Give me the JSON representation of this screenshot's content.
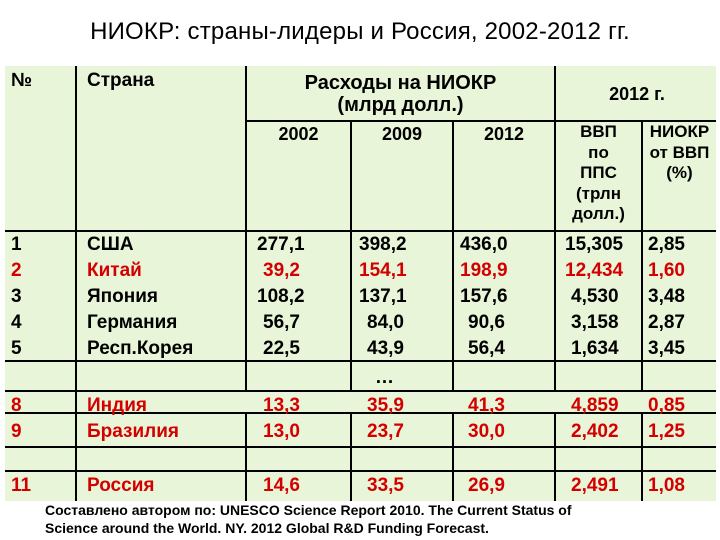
{
  "title": "НИОКР: страны-лидеры и Россия, 2002-2012 гг.",
  "headers": {
    "num": "№",
    "country": "Страна",
    "rd_group_line1": "Расходы на НИОКР",
    "rd_group_line2": "(млрд долл.)",
    "y2002": "2002",
    "y2009": "2009",
    "y2012": "2012",
    "group_2012": "2012 г.",
    "gdp_lines": [
      "ВВП",
      "по",
      "ППС",
      "(трлн",
      "долл.)"
    ],
    "rd_gdp_lines": [
      "НИОКР",
      "от ВВП",
      "(%)"
    ]
  },
  "rows": [
    {
      "num": "1",
      "country": "США",
      "v2002": "277,1",
      "v2009": "398,2",
      "v2012": "436,0",
      "gdp": "15,305",
      "share": "2,85",
      "color": "#000000"
    },
    {
      "num": "2",
      "country": "Китай",
      "v2002": "39,2",
      "v2009": "154,1",
      "v2012": "198,9",
      "gdp": "12,434",
      "share": "1,60",
      "color": "#d40000"
    },
    {
      "num": "3",
      "country": "Япония",
      "v2002": "108,2",
      "v2009": "137,1",
      "v2012": "157,6",
      "gdp": "4,530",
      "share": "3,48",
      "color": "#000000"
    },
    {
      "num": "4",
      "country": "Германия",
      "v2002": "56,7",
      "v2009": "84,0",
      "v2012": "90,6",
      "gdp": "3,158",
      "share": "2,87",
      "color": "#000000"
    },
    {
      "num": "5",
      "country": "Респ.Корея",
      "v2002": "22,5",
      "v2009": "43,9",
      "v2012": "56,4",
      "gdp": "1,634",
      "share": "3,45",
      "color": "#000000"
    },
    {
      "num": "8",
      "country": "Индия",
      "v2002": "13,3",
      "v2009": "35,9",
      "v2012": "41,3",
      "gdp": "4,859",
      "share": "0,85",
      "color": "#d40000"
    },
    {
      "num": "9",
      "country": "Бразилия",
      "v2002": "13,0",
      "v2009": "23,7",
      "v2012": "30,0",
      "gdp": "2,402",
      "share": "1,25",
      "color": "#d40000"
    },
    {
      "num": "11",
      "country": "Россия",
      "v2002": "14,6",
      "v2009": "33,5",
      "v2012": "26,9",
      "gdp": "2,491",
      "share": "1,08",
      "color": "#d40000"
    }
  ],
  "ellipsis": "…",
  "footnote_line1": "Составлено автором по: UNESCO Science Report 2010.  The Current Status of",
  "footnote_line2": "Science around the World. NY. 2012 Global R&D Funding Forecast.",
  "colors": {
    "table_bg": "#e8f5d8",
    "highlight_text": "#d40000",
    "grid": "#000000"
  }
}
